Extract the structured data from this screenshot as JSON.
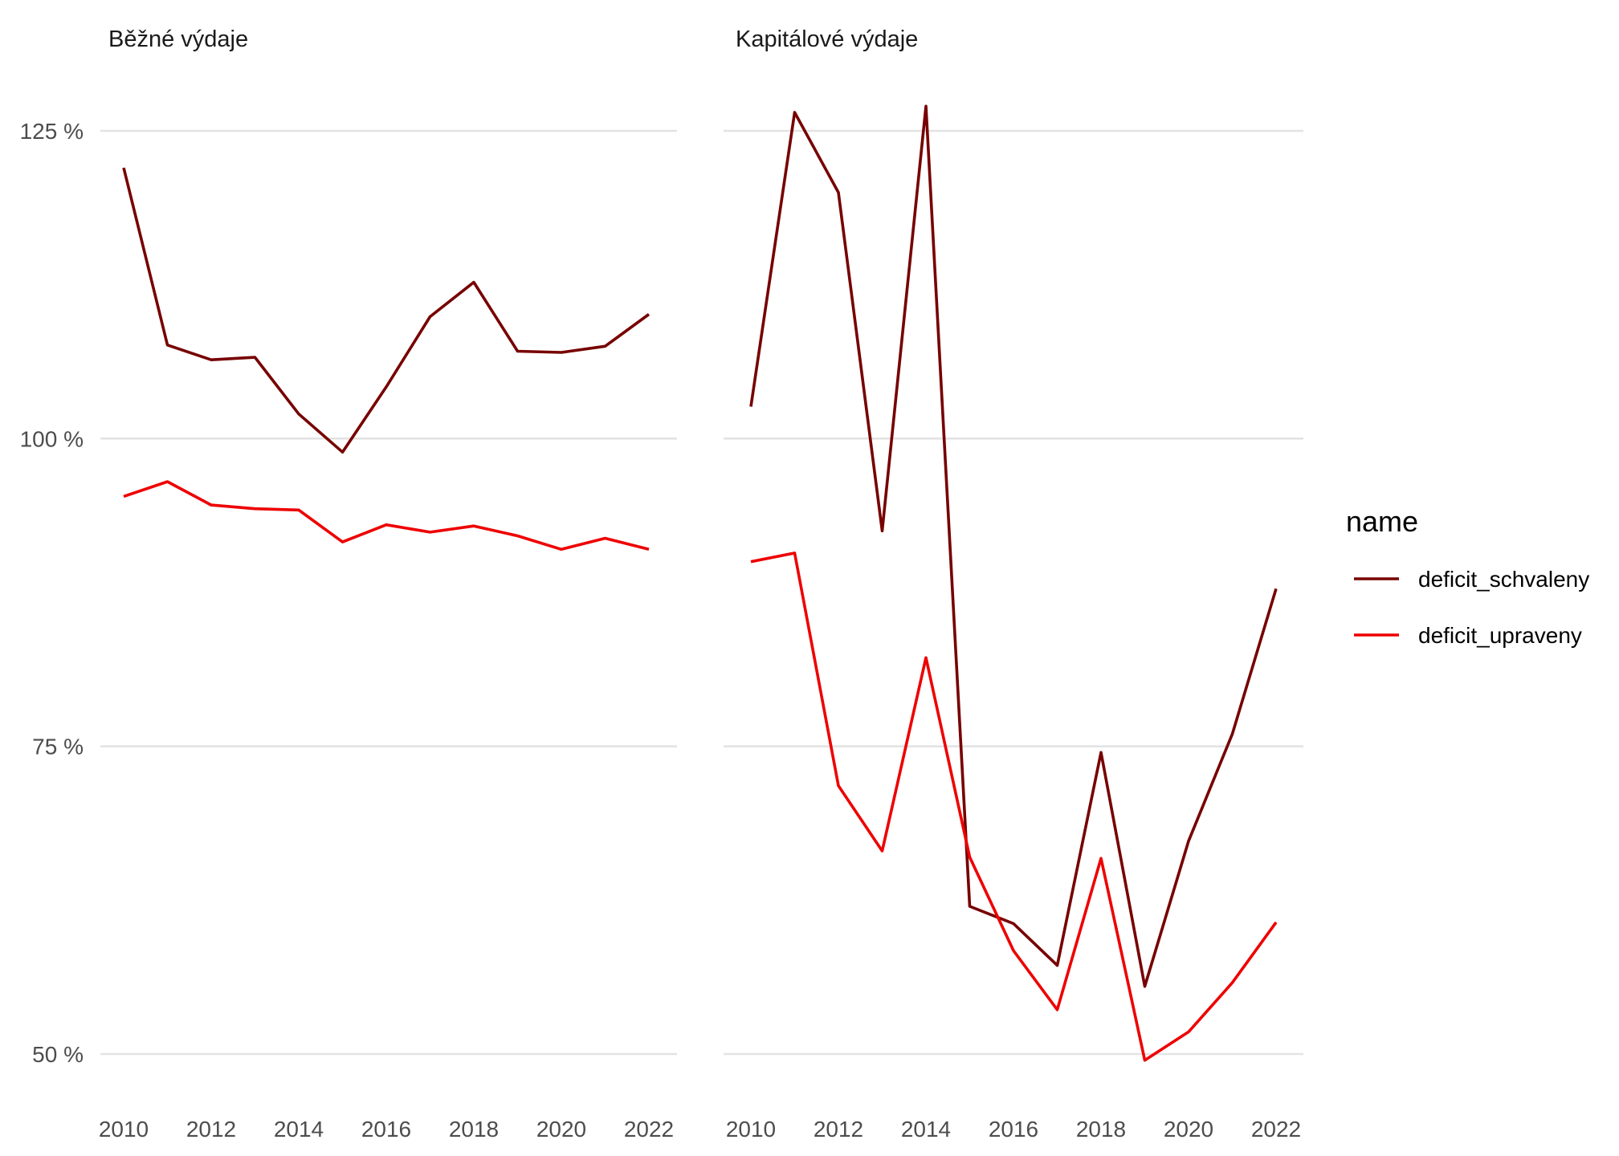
{
  "chart_data": {
    "type": "line",
    "facets": [
      {
        "title": "Běžné výdaje",
        "x": [
          2010,
          2011,
          2012,
          2013,
          2014,
          2015,
          2016,
          2017,
          2018,
          2019,
          2020,
          2021,
          2022
        ],
        "series": [
          {
            "name": "deficit_schvaleny",
            "values": [
              122.0,
              107.6,
              106.4,
              106.6,
              102.0,
              98.9,
              104.2,
              109.9,
              112.7,
              107.1,
              107.0,
              107.5,
              110.1
            ]
          },
          {
            "name": "deficit_upraveny",
            "values": [
              95.3,
              96.5,
              94.6,
              94.3,
              94.2,
              91.6,
              93.0,
              92.4,
              92.9,
              92.1,
              91.0,
              91.9,
              91.0
            ]
          }
        ]
      },
      {
        "title": "Kapitálové výdaje",
        "x": [
          2010,
          2011,
          2012,
          2013,
          2014,
          2015,
          2016,
          2017,
          2018,
          2019,
          2020,
          2021,
          2022
        ],
        "series": [
          {
            "name": "deficit_schvaleny",
            "values": [
              102.6,
              126.5,
              120.0,
              92.5,
              127.0,
              62.0,
              60.6,
              57.2,
              74.5,
              55.5,
              67.3,
              76.0,
              87.8
            ]
          },
          {
            "name": "deficit_upraveny",
            "values": [
              90.0,
              90.7,
              71.8,
              66.5,
              82.2,
              66.0,
              58.4,
              53.6,
              65.9,
              49.5,
              51.8,
              55.8,
              60.7
            ]
          }
        ]
      }
    ],
    "x_ticks": [
      "2010",
      "2012",
      "2014",
      "2016",
      "2018",
      "2020",
      "2022"
    ],
    "y_ticks": [
      "50 %",
      "75 %",
      "100 %",
      "125 %"
    ],
    "y_tick_values": [
      50,
      75,
      100,
      125
    ],
    "xlim": [
      2010,
      2022
    ],
    "ylim": [
      50,
      125
    ],
    "grid": "horizontal major",
    "legend": {
      "title": "name",
      "position": "right",
      "entries": [
        {
          "label": "deficit_schvaleny",
          "color": "#770000"
        },
        {
          "label": "deficit_upraveny",
          "color": "#ee0000"
        }
      ]
    }
  }
}
